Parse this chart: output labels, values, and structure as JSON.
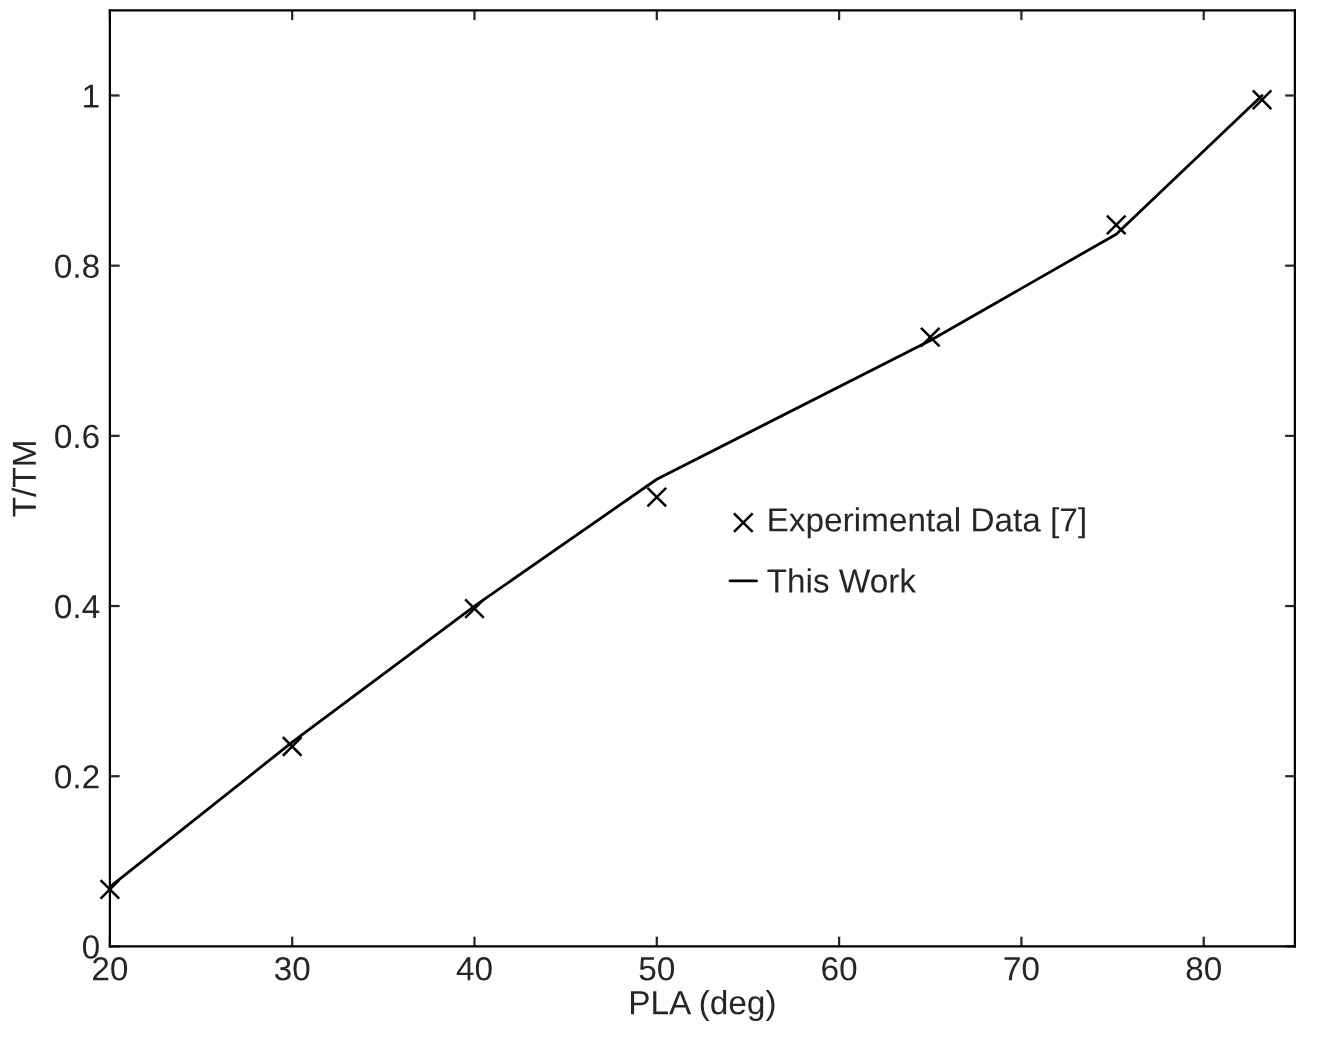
{
  "chart_data": {
    "type": "line",
    "xlabel": "PLA (deg)",
    "ylabel": "T/TM",
    "series": [
      {
        "name": "Experimental Data [7]",
        "type": "scatter",
        "color": "#000000",
        "marker": "cross",
        "x": [
          20,
          30,
          40,
          50,
          65,
          75.2,
          83.2
        ],
        "values": [
          0.067,
          0.235,
          0.397,
          0.528,
          0.716,
          0.848,
          0.995
        ]
      },
      {
        "name": "This Work",
        "color": "#000000",
        "line_style": "solid",
        "x": [
          20,
          30,
          40,
          50,
          65,
          75.2,
          83.2
        ],
        "values": [
          0.07,
          0.24,
          0.4,
          0.549,
          0.712,
          0.837,
          1.0
        ]
      }
    ],
    "xlim": [
      20,
      85
    ],
    "xticks": [
      20,
      30,
      40,
      50,
      60,
      70,
      80
    ],
    "ylim": [
      0,
      1.1
    ],
    "yticks": [
      0,
      0.2,
      0.4,
      0.6,
      0.8,
      1
    ],
    "grid": false,
    "legend": "right"
  }
}
